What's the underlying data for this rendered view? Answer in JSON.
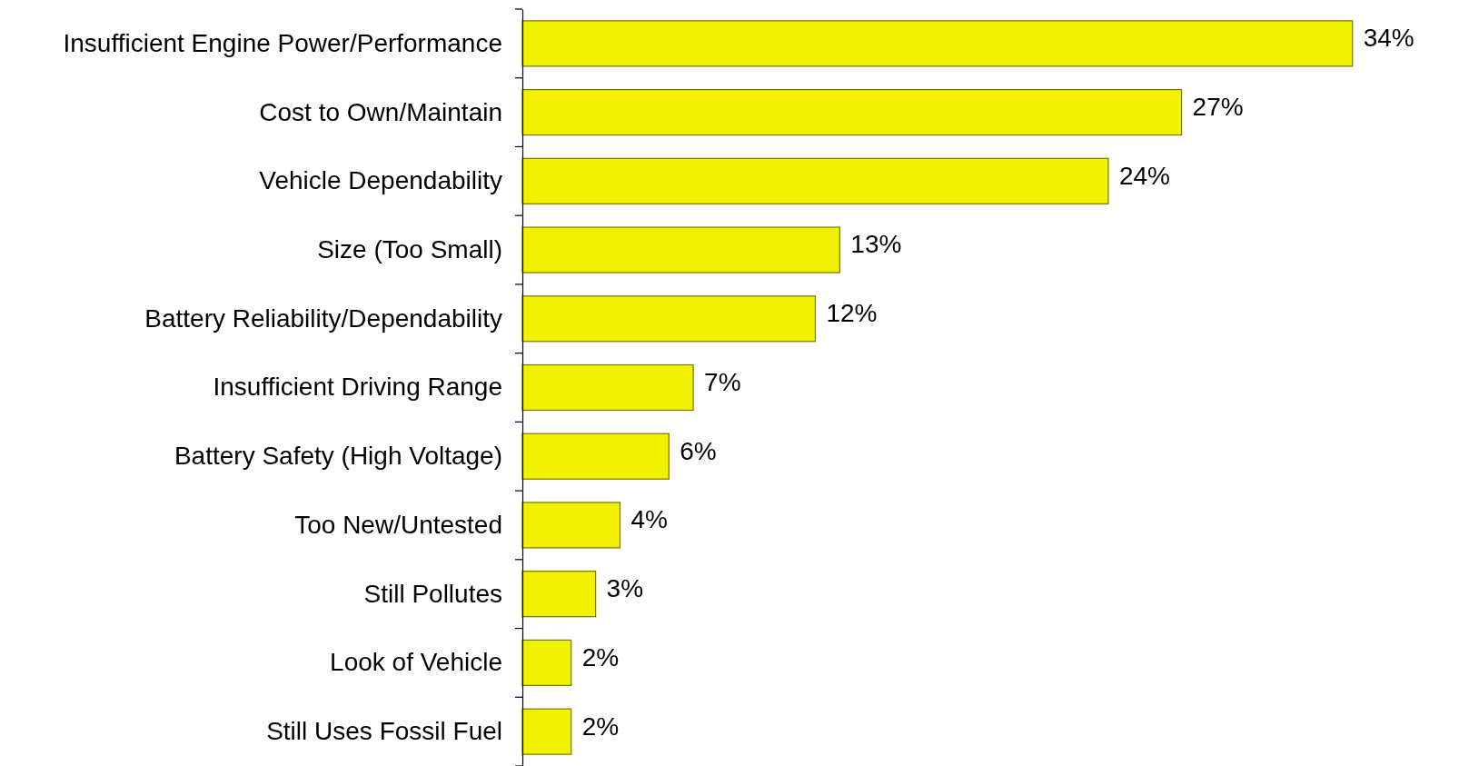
{
  "chart_data": {
    "type": "bar",
    "orientation": "horizontal",
    "categories": [
      "Insufficient Engine Power/Performance",
      "Cost to Own/Maintain",
      "Vehicle Dependability",
      "Size (Too Small)",
      "Battery Reliability/Dependability",
      "Insufficient Driving Range",
      "Battery Safety (High Voltage)",
      "Too New/Untested",
      "Still Pollutes",
      "Look of Vehicle",
      "Still Uses Fossil Fuel"
    ],
    "values": [
      34,
      27,
      24,
      13,
      12,
      7,
      6,
      4,
      3,
      2,
      2
    ],
    "value_labels": [
      "34%",
      "27%",
      "24%",
      "13%",
      "12%",
      "7%",
      "6%",
      "4%",
      "3%",
      "2%",
      "2%"
    ],
    "color": "#f2f200",
    "grid": false
  }
}
